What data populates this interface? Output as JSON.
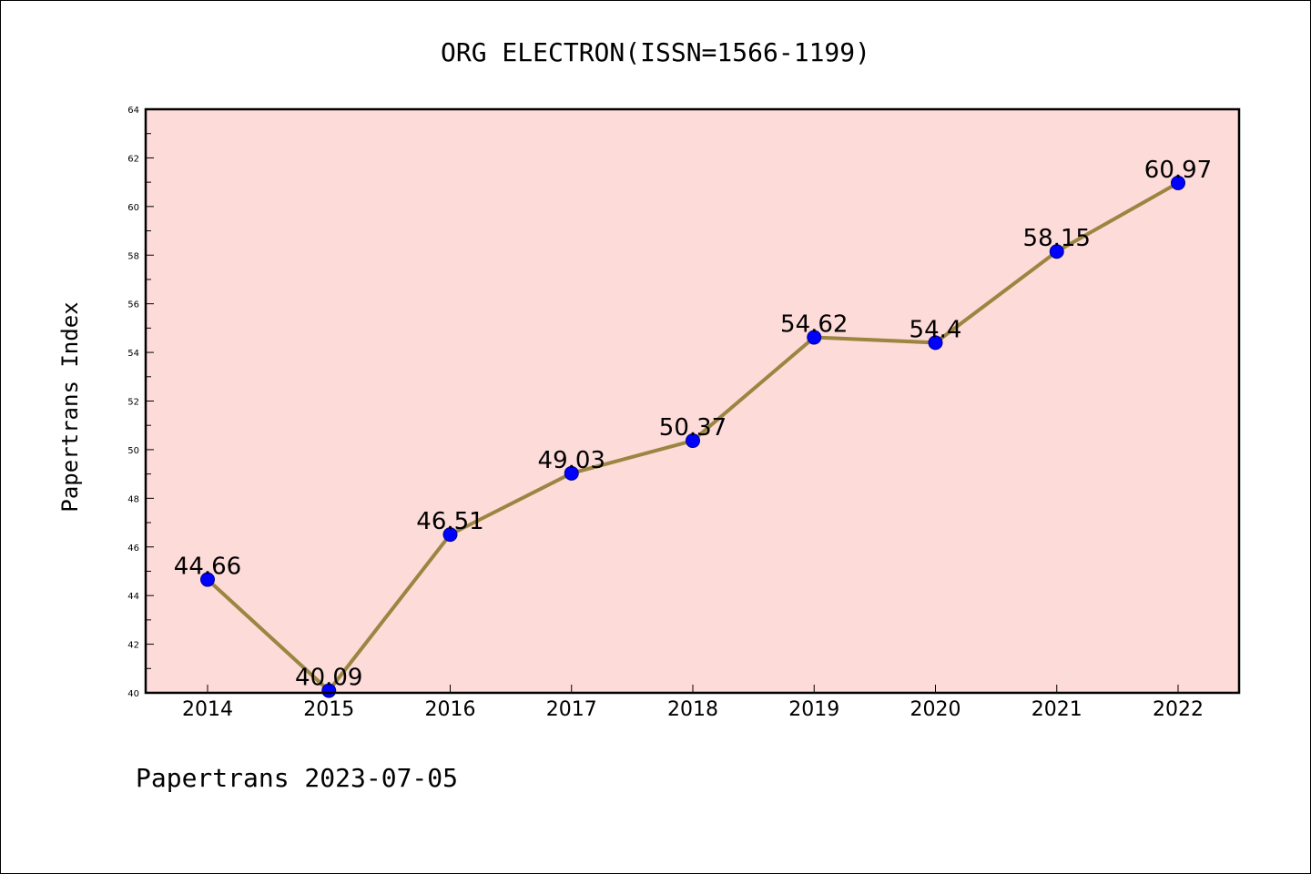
{
  "chart_data": {
    "type": "line",
    "title": "ORG ELECTRON(ISSN=1566-1199)",
    "xlabel": "",
    "ylabel": "Papertrans Index",
    "categories": [
      "2014",
      "2015",
      "2016",
      "2017",
      "2018",
      "2019",
      "2020",
      "2021",
      "2022"
    ],
    "series": [
      {
        "values": [
          44.66,
          40.09,
          46.51,
          49.03,
          50.37,
          54.62,
          54.4,
          58.15,
          60.97
        ],
        "labels": [
          "44.66",
          "40.09",
          "46.51",
          "49.03",
          "50.37",
          "54.62",
          "54.4",
          "58.15",
          "60.97"
        ]
      }
    ],
    "ylim": [
      40,
      64
    ],
    "yticks": [
      "40",
      "42",
      "44",
      "46",
      "48",
      "50",
      "52",
      "54",
      "56",
      "58",
      "60",
      "62",
      "64"
    ],
    "grid": false,
    "footer": "Papertrans 2023-07-05",
    "colors": {
      "plot_background": "#fddbd9",
      "line": "#9b8540",
      "marker": "#0000ff",
      "marker_edge": "#00008b"
    }
  }
}
